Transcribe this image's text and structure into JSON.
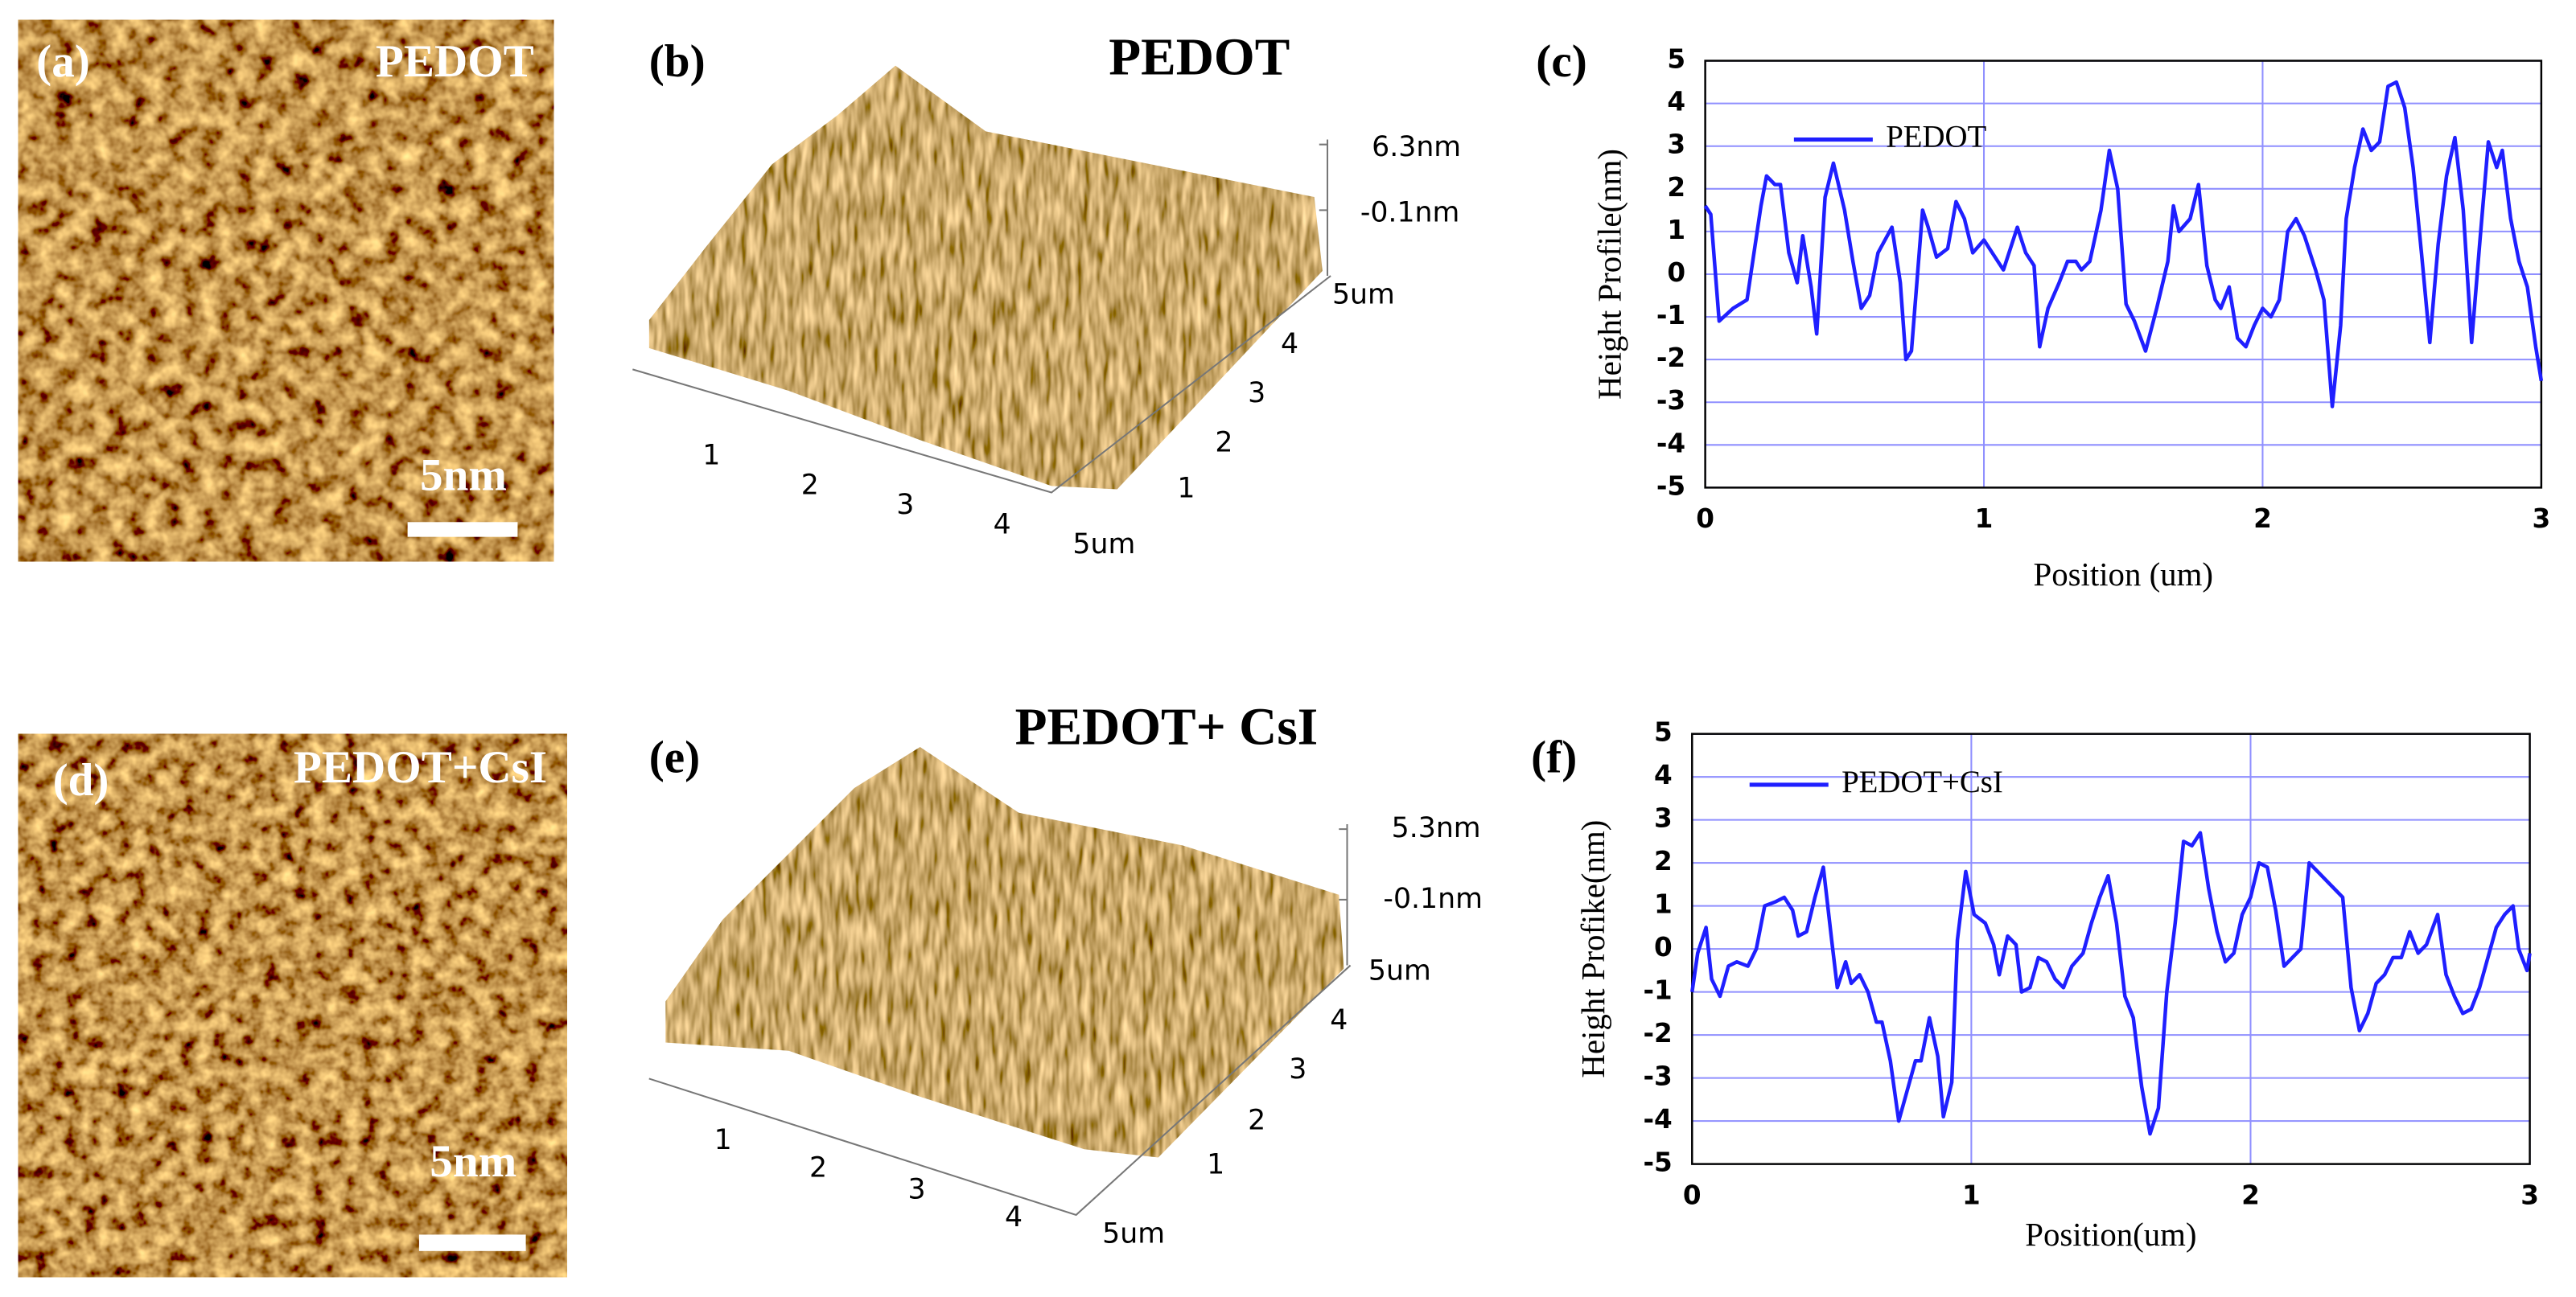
{
  "images": [
    {
      "label": "(a)",
      "title": "PEDOT",
      "scale_bar": "5nm"
    },
    {
      "label": "(d)",
      "title": "PEDOT+CsI",
      "scale_bar": "5nm"
    }
  ],
  "surfaces": [
    {
      "label": "(b)",
      "title": "PEDOT",
      "z_labels": [
        "6.3nm",
        "-0.1nm"
      ],
      "x_labels": [
        "1",
        "2",
        "3",
        "4",
        "5um"
      ],
      "y_labels": [
        "1",
        "2",
        "3",
        "4",
        "5um"
      ]
    },
    {
      "label": "(e)",
      "title": "PEDOT+ CsI",
      "z_labels": [
        "5.3nm",
        "-0.1nm"
      ],
      "x_labels": [
        "1",
        "2",
        "3",
        "4",
        "5um"
      ],
      "y_labels": [
        "1",
        "2",
        "3",
        "4",
        "5um"
      ]
    }
  ],
  "chart_data": [
    {
      "type": "line",
      "label": "(c)",
      "xlabel": "Position (um)",
      "ylabel": "Height Profile(nm)",
      "xlim": [
        0,
        3
      ],
      "xticks": [
        0,
        1,
        2,
        3
      ],
      "ylim": [
        -5,
        5
      ],
      "yticks": [
        -5,
        -4,
        -3,
        -2,
        -1,
        0,
        1,
        2,
        3,
        4,
        5
      ],
      "grid": true,
      "legend": "upper left",
      "x": [
        0,
        0.02,
        0.05,
        0.1,
        0.15,
        0.2,
        0.22,
        0.25,
        0.27,
        0.3,
        0.33,
        0.35,
        0.38,
        0.4,
        0.43,
        0.46,
        0.5,
        0.53,
        0.56,
        0.59,
        0.62,
        0.67,
        0.7,
        0.72,
        0.74,
        0.78,
        0.8,
        0.83,
        0.87,
        0.9,
        0.93,
        0.96,
        1.0,
        1.03,
        1.07,
        1.12,
        1.15,
        1.18,
        1.2,
        1.23,
        1.27,
        1.3,
        1.33,
        1.35,
        1.38,
        1.42,
        1.45,
        1.48,
        1.51,
        1.54,
        1.58,
        1.62,
        1.66,
        1.68,
        1.7,
        1.74,
        1.77,
        1.8,
        1.83,
        1.85,
        1.88,
        1.91,
        1.94,
        1.97,
        2.0,
        2.03,
        2.06,
        2.09,
        2.12,
        2.15,
        2.19,
        2.22,
        2.25,
        2.28,
        2.3,
        2.33,
        2.36,
        2.39,
        2.42,
        2.45,
        2.48,
        2.51,
        2.54,
        2.57,
        2.6,
        2.63,
        2.66,
        2.69,
        2.72,
        2.75,
        2.78,
        2.81,
        2.84,
        2.86,
        2.89,
        2.92,
        2.95,
        2.98,
        3.0
      ],
      "series": [
        {
          "name": "PEDOT",
          "color": "#1f1fff",
          "values": [
            1.6,
            1.4,
            -1.1,
            -0.8,
            -0.6,
            1.6,
            2.3,
            2.1,
            2.1,
            0.5,
            -0.2,
            0.9,
            -0.3,
            -1.4,
            1.8,
            2.6,
            1.5,
            0.3,
            -0.8,
            -0.5,
            0.5,
            1.1,
            -0.2,
            -2.0,
            -1.8,
            1.5,
            1.1,
            0.4,
            0.6,
            1.7,
            1.3,
            0.5,
            0.8,
            0.5,
            0.1,
            1.1,
            0.5,
            0.2,
            -1.7,
            -0.8,
            -0.2,
            0.3,
            0.3,
            0.1,
            0.3,
            1.5,
            2.9,
            2.0,
            -0.7,
            -1.1,
            -1.8,
            -0.8,
            0.3,
            1.6,
            1.0,
            1.3,
            2.1,
            0.2,
            -0.6,
            -0.8,
            -0.3,
            -1.5,
            -1.7,
            -1.2,
            -0.8,
            -1.0,
            -0.6,
            1.0,
            1.3,
            0.9,
            0.1,
            -0.6,
            -3.1,
            -1.2,
            1.3,
            2.5,
            3.4,
            2.9,
            3.1,
            4.4,
            4.5,
            3.9,
            2.5,
            0.5,
            -1.6,
            0.7,
            2.3,
            3.2,
            1.5,
            -1.6,
            0.8,
            3.1,
            2.5,
            2.9,
            1.3,
            0.3,
            -0.3,
            -1.7,
            -2.5
          ]
        }
      ]
    },
    {
      "type": "line",
      "label": "(f)",
      "xlabel": "Position(um)",
      "ylabel": "Height Profike(nm)",
      "xlim": [
        0,
        3
      ],
      "xticks": [
        0,
        1,
        2,
        3
      ],
      "ylim": [
        -5,
        5
      ],
      "yticks": [
        -5,
        -4,
        -3,
        -2,
        -1,
        0,
        1,
        2,
        3,
        4,
        5
      ],
      "grid": true,
      "legend": "upper left",
      "x": [
        0,
        0.02,
        0.05,
        0.07,
        0.1,
        0.13,
        0.16,
        0.2,
        0.23,
        0.26,
        0.3,
        0.33,
        0.36,
        0.38,
        0.41,
        0.44,
        0.47,
        0.5,
        0.52,
        0.55,
        0.57,
        0.6,
        0.63,
        0.66,
        0.68,
        0.71,
        0.74,
        0.77,
        0.8,
        0.82,
        0.85,
        0.88,
        0.9,
        0.93,
        0.95,
        0.98,
        1.01,
        1.05,
        1.08,
        1.1,
        1.13,
        1.16,
        1.18,
        1.21,
        1.24,
        1.27,
        1.3,
        1.33,
        1.36,
        1.4,
        1.43,
        1.46,
        1.49,
        1.52,
        1.55,
        1.58,
        1.61,
        1.64,
        1.67,
        1.7,
        1.73,
        1.76,
        1.79,
        1.82,
        1.85,
        1.88,
        1.91,
        1.94,
        1.97,
        2.0,
        2.03,
        2.06,
        2.09,
        2.12,
        2.15,
        2.18,
        2.21,
        2.24,
        2.27,
        2.3,
        2.33,
        2.36,
        2.39,
        2.42,
        2.45,
        2.48,
        2.51,
        2.54,
        2.57,
        2.6,
        2.63,
        2.67,
        2.7,
        2.73,
        2.76,
        2.79,
        2.82,
        2.85,
        2.88,
        2.91,
        2.94,
        2.96,
        2.99,
        3.0
      ],
      "series": [
        {
          "name": "PEDOT+CsI",
          "color": "#1f1fff",
          "values": [
            -1.0,
            -0.1,
            0.5,
            -0.7,
            -1.1,
            -0.4,
            -0.3,
            -0.4,
            0.0,
            1.0,
            1.1,
            1.2,
            0.9,
            0.3,
            0.4,
            1.2,
            1.9,
            0.2,
            -0.9,
            -0.3,
            -0.8,
            -0.6,
            -1.0,
            -1.7,
            -1.7,
            -2.6,
            -4.0,
            -3.3,
            -2.6,
            -2.6,
            -1.6,
            -2.5,
            -3.9,
            -3.1,
            0.2,
            1.8,
            0.8,
            0.6,
            0.1,
            -0.6,
            0.3,
            0.1,
            -1.0,
            -0.9,
            -0.2,
            -0.3,
            -0.7,
            -0.9,
            -0.4,
            -0.1,
            0.6,
            1.2,
            1.7,
            0.6,
            -1.1,
            -1.6,
            -3.2,
            -4.3,
            -3.7,
            -1.0,
            0.6,
            2.5,
            2.4,
            2.7,
            1.4,
            0.4,
            -0.3,
            -0.1,
            0.8,
            1.2,
            2.0,
            1.9,
            0.9,
            -0.4,
            -0.2,
            0.0,
            2.0,
            1.8,
            1.6,
            1.4,
            1.2,
            -0.9,
            -1.9,
            -1.5,
            -0.8,
            -0.6,
            -0.2,
            -0.2,
            0.4,
            -0.1,
            0.1,
            0.8,
            -0.6,
            -1.1,
            -1.5,
            -1.4,
            -0.9,
            -0.2,
            0.5,
            0.8,
            1.0,
            0.0,
            -0.5,
            -0.1
          ]
        }
      ]
    }
  ]
}
